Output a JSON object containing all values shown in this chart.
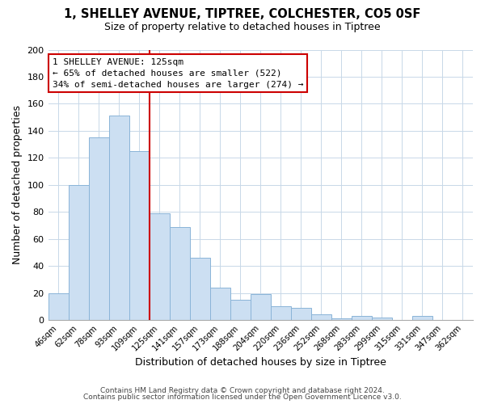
{
  "title": "1, SHELLEY AVENUE, TIPTREE, COLCHESTER, CO5 0SF",
  "subtitle": "Size of property relative to detached houses in Tiptree",
  "xlabel": "Distribution of detached houses by size in Tiptree",
  "ylabel": "Number of detached properties",
  "bar_labels": [
    "46sqm",
    "62sqm",
    "78sqm",
    "93sqm",
    "109sqm",
    "125sqm",
    "141sqm",
    "157sqm",
    "173sqm",
    "188sqm",
    "204sqm",
    "220sqm",
    "236sqm",
    "252sqm",
    "268sqm",
    "283sqm",
    "299sqm",
    "315sqm",
    "331sqm",
    "347sqm",
    "362sqm"
  ],
  "bar_values": [
    20,
    100,
    135,
    151,
    125,
    79,
    69,
    46,
    24,
    15,
    19,
    10,
    9,
    4,
    1,
    3,
    2,
    0,
    3,
    0,
    0
  ],
  "bar_color": "#ccdff2",
  "bar_edge_color": "#8ab4d8",
  "vline_index": 5,
  "vline_color": "#cc0000",
  "ylim": [
    0,
    200
  ],
  "yticks": [
    0,
    20,
    40,
    60,
    80,
    100,
    120,
    140,
    160,
    180,
    200
  ],
  "annotation_title": "1 SHELLEY AVENUE: 125sqm",
  "annotation_line1": "← 65% of detached houses are smaller (522)",
  "annotation_line2": "34% of semi-detached houses are larger (274) →",
  "annotation_box_color": "#ffffff",
  "annotation_box_edge": "#cc0000",
  "footer1": "Contains HM Land Registry data © Crown copyright and database right 2024.",
  "footer2": "Contains public sector information licensed under the Open Government Licence v3.0.",
  "background_color": "#ffffff",
  "grid_color": "#c8d8e8"
}
